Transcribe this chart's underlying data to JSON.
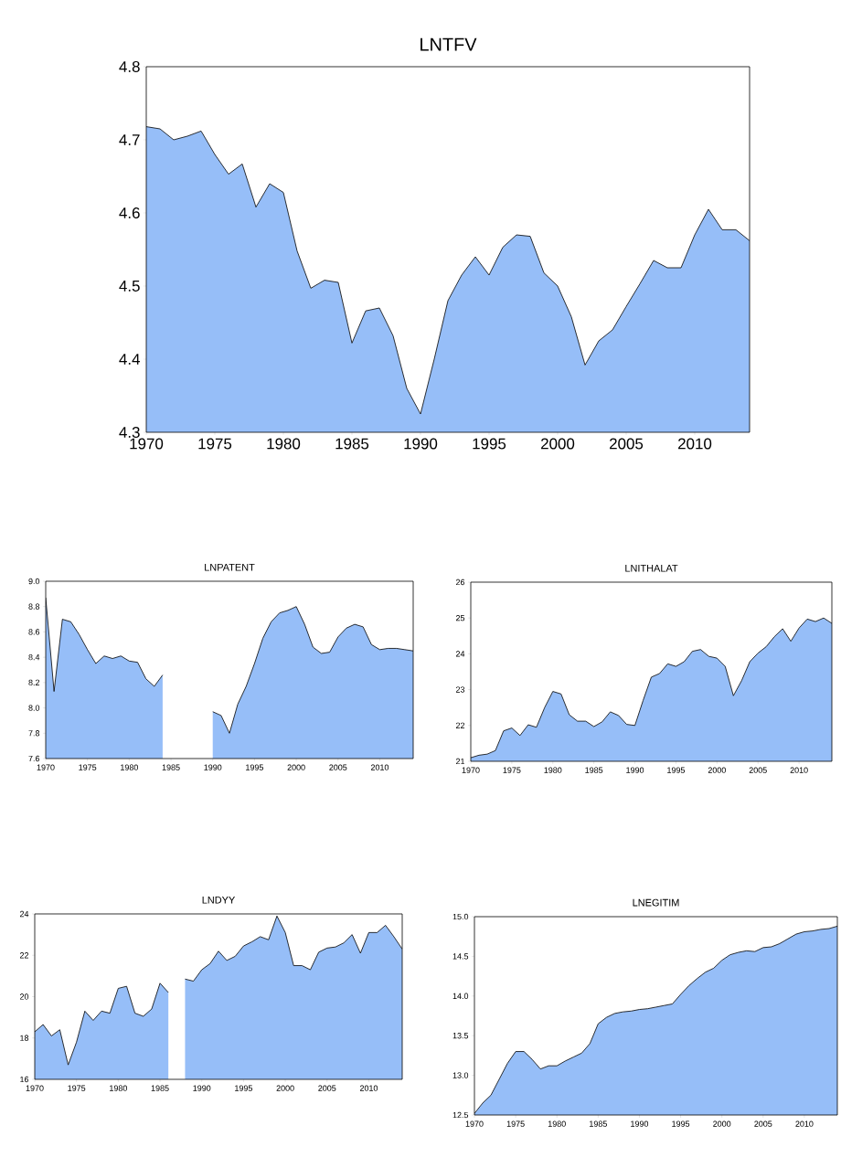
{
  "chart_data": [
    {
      "type": "area",
      "title": "LNTFV",
      "color": "#96bef8",
      "xlim": [
        1970,
        2014
      ],
      "xticks": [
        1970,
        1975,
        1980,
        1985,
        1990,
        1995,
        2000,
        2005,
        2010
      ],
      "ylim": [
        4.3,
        4.8
      ],
      "yticks": [
        4.3,
        4.4,
        4.5,
        4.6,
        4.7,
        4.8
      ],
      "x": [
        1970,
        1971,
        1972,
        1973,
        1974,
        1975,
        1976,
        1977,
        1978,
        1979,
        1980,
        1981,
        1982,
        1983,
        1984,
        1985,
        1986,
        1987,
        1988,
        1989,
        1990,
        1991,
        1992,
        1993,
        1994,
        1995,
        1996,
        1997,
        1998,
        1999,
        2000,
        2001,
        2002,
        2003,
        2004,
        2005,
        2006,
        2007,
        2008,
        2009,
        2010,
        2011,
        2012,
        2013,
        2014
      ],
      "values": [
        4.718,
        4.715,
        4.7,
        4.705,
        4.712,
        4.68,
        4.653,
        4.667,
        4.608,
        4.64,
        4.628,
        4.548,
        4.497,
        4.508,
        4.505,
        4.422,
        4.466,
        4.47,
        4.432,
        4.36,
        4.325,
        4.4,
        4.48,
        4.515,
        4.54,
        4.515,
        4.553,
        4.57,
        4.568,
        4.518,
        4.5,
        4.458,
        4.392,
        4.425,
        4.44,
        4.472,
        4.503,
        4.535,
        4.525,
        4.525,
        4.57,
        4.605,
        4.577,
        4.577,
        4.562
      ]
    },
    {
      "type": "area",
      "title": "LNPATENT",
      "color": "#96bef8",
      "xlim": [
        1970,
        2014
      ],
      "xticks": [
        1970,
        1975,
        1980,
        1985,
        1990,
        1995,
        2000,
        2005,
        2010
      ],
      "ylim": [
        7.6,
        9.0
      ],
      "yticks": [
        7.6,
        7.8,
        {
          "value": 8.0,
          "label": "8.0"
        },
        8.2,
        8.4,
        8.6,
        8.8,
        {
          "value": 9.0,
          "label": "9.0"
        }
      ],
      "x": [
        1970,
        1971,
        1972,
        1973,
        1974,
        1975,
        1976,
        1977,
        1978,
        1979,
        1980,
        1981,
        1982,
        1983,
        1984,
        1985,
        1986,
        1987,
        1988,
        1989,
        1990,
        1991,
        1992,
        1993,
        1994,
        1995,
        1996,
        1997,
        1998,
        1999,
        2000,
        2001,
        2002,
        2003,
        2004,
        2005,
        2006,
        2007,
        2008,
        2009,
        2010,
        2011,
        2012,
        2013,
        2014
      ],
      "values": [
        8.87,
        8.13,
        8.7,
        8.68,
        8.58,
        8.46,
        8.35,
        8.41,
        8.39,
        8.41,
        8.37,
        8.36,
        8.23,
        8.17,
        8.26,
        null,
        null,
        null,
        null,
        null,
        7.97,
        7.94,
        7.8,
        8.03,
        8.17,
        8.35,
        8.55,
        8.68,
        8.75,
        8.77,
        8.8,
        8.66,
        8.48,
        8.43,
        8.44,
        8.56,
        8.63,
        8.66,
        8.64,
        8.5,
        8.46,
        8.47,
        8.47,
        8.46,
        8.45
      ]
    },
    {
      "type": "area",
      "title": "LNITHALAT",
      "color": "#96bef8",
      "xlim": [
        1970,
        2014
      ],
      "xticks": [
        1970,
        1975,
        1980,
        1985,
        1990,
        1995,
        2000,
        2005,
        2010
      ],
      "ylim": [
        21,
        26
      ],
      "yticks": [
        21,
        22,
        23,
        24,
        25,
        26
      ],
      "x": [
        1970,
        1971,
        1972,
        1973,
        1974,
        1975,
        1976,
        1977,
        1978,
        1979,
        1980,
        1981,
        1982,
        1983,
        1984,
        1985,
        1986,
        1987,
        1988,
        1989,
        1990,
        1991,
        1992,
        1993,
        1994,
        1995,
        1996,
        1997,
        1998,
        1999,
        2000,
        2001,
        2002,
        2003,
        2004,
        2005,
        2006,
        2007,
        2008,
        2009,
        2010,
        2011,
        2012,
        2013,
        2014
      ],
      "values": [
        21.1,
        21.17,
        21.2,
        21.3,
        21.85,
        21.93,
        21.72,
        22.02,
        21.95,
        22.5,
        22.95,
        22.88,
        22.3,
        22.12,
        22.12,
        21.97,
        22.1,
        22.38,
        22.28,
        22.03,
        22.0,
        22.7,
        23.35,
        23.45,
        23.72,
        23.65,
        23.78,
        24.07,
        24.12,
        23.93,
        23.88,
        23.65,
        22.83,
        23.25,
        23.78,
        24.02,
        24.2,
        24.48,
        24.7,
        24.35,
        24.72,
        24.97,
        24.9,
        25.0,
        24.85
      ]
    },
    {
      "type": "area",
      "title": "LNDYY",
      "color": "#96bef8",
      "xlim": [
        1970,
        2014
      ],
      "xticks": [
        1970,
        1975,
        1980,
        1985,
        1990,
        1995,
        2000,
        2005,
        2010
      ],
      "ylim": [
        16,
        24
      ],
      "yticks": [
        16,
        18,
        20,
        22,
        24
      ],
      "x": [
        1970,
        1971,
        1972,
        1973,
        1974,
        1975,
        1976,
        1977,
        1978,
        1979,
        1980,
        1981,
        1982,
        1983,
        1984,
        1985,
        1986,
        1987,
        1988,
        1989,
        1990,
        1991,
        1992,
        1993,
        1994,
        1995,
        1996,
        1997,
        1998,
        1999,
        2000,
        2001,
        2002,
        2003,
        2004,
        2005,
        2006,
        2007,
        2008,
        2009,
        2010,
        2011,
        2012,
        2013,
        2014
      ],
      "values": [
        18.3,
        18.65,
        18.1,
        18.4,
        16.7,
        17.8,
        19.3,
        18.85,
        19.3,
        19.2,
        20.4,
        20.5,
        19.2,
        19.05,
        19.4,
        20.65,
        20.2,
        null,
        20.85,
        20.75,
        21.3,
        21.6,
        22.2,
        21.75,
        21.95,
        22.45,
        22.65,
        22.9,
        22.75,
        23.9,
        23.1,
        21.5,
        21.5,
        21.3,
        22.15,
        22.35,
        22.4,
        22.6,
        23.0,
        22.1,
        23.1,
        23.1,
        23.45,
        22.9,
        22.3
      ]
    },
    {
      "type": "area",
      "title": "LNEGITIM",
      "color": "#96bef8",
      "xlim": [
        1970,
        2014
      ],
      "xticks": [
        1970,
        1975,
        1980,
        1985,
        1990,
        1995,
        2000,
        2005,
        2010
      ],
      "ylim": [
        12.5,
        15.0
      ],
      "yticks": [
        12.5,
        {
          "value": 13.0,
          "label": "13.0"
        },
        13.5,
        {
          "value": 14.0,
          "label": "14.0"
        },
        14.5,
        {
          "value": 15.0,
          "label": "15.0"
        }
      ],
      "x": [
        1970,
        1971,
        1972,
        1973,
        1974,
        1975,
        1976,
        1977,
        1978,
        1979,
        1980,
        1981,
        1982,
        1983,
        1984,
        1985,
        1986,
        1987,
        1988,
        1989,
        1990,
        1991,
        1992,
        1993,
        1994,
        1995,
        1996,
        1997,
        1998,
        1999,
        2000,
        2001,
        2002,
        2003,
        2004,
        2005,
        2006,
        2007,
        2008,
        2009,
        2010,
        2011,
        2012,
        2013,
        2014
      ],
      "values": [
        12.52,
        12.65,
        12.75,
        12.95,
        13.15,
        13.3,
        13.3,
        13.2,
        13.08,
        13.12,
        13.12,
        13.18,
        13.23,
        13.28,
        13.4,
        13.65,
        13.73,
        13.78,
        13.8,
        13.81,
        13.83,
        13.84,
        13.86,
        13.88,
        13.9,
        14.02,
        14.13,
        14.22,
        14.3,
        14.35,
        14.45,
        14.52,
        14.55,
        14.57,
        14.56,
        14.61,
        14.62,
        14.66,
        14.72,
        14.78,
        14.81,
        14.82,
        14.84,
        14.85,
        14.88
      ]
    }
  ]
}
